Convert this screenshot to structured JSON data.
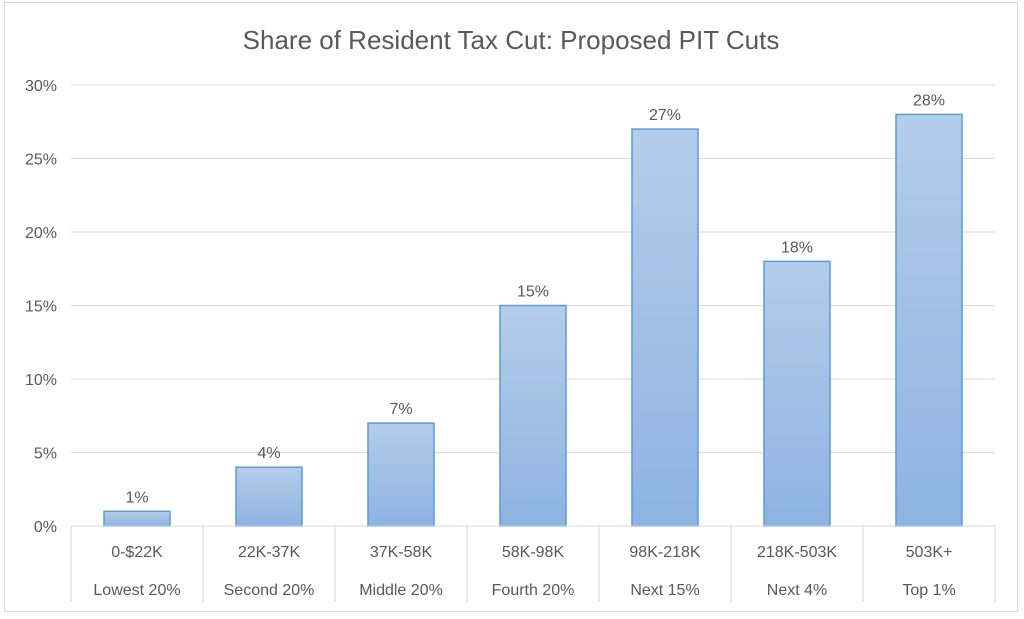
{
  "chart_data": {
    "type": "bar",
    "title": "Share of Resident Tax Cut: Proposed PIT Cuts",
    "xlabel": "",
    "ylabel": "",
    "categories": [
      "0-$22K",
      "22K-37K",
      "37K-58K",
      "58K-98K",
      "98K-218K",
      "218K-503K",
      "503K+"
    ],
    "groups": [
      "Lowest 20%",
      "Second 20%",
      "Middle 20%",
      "Fourth 20%",
      "Next 15%",
      "Next 4%",
      "Top 1%"
    ],
    "values": [
      1,
      4,
      7,
      15,
      27,
      18,
      28
    ],
    "data_labels": [
      "1%",
      "4%",
      "7%",
      "15%",
      "27%",
      "18%",
      "28%"
    ],
    "ylim": [
      0,
      30
    ],
    "yticks": [
      0,
      5,
      10,
      15,
      20,
      25,
      30
    ],
    "ytick_labels": [
      "0%",
      "5%",
      "10%",
      "15%",
      "20%",
      "25%",
      "30%"
    ],
    "grid": true,
    "legend": "none",
    "colors": {
      "bar_top": "#b4cde9",
      "bar_bottom": "#8eb3e2",
      "bar_border": "#5b9bd5",
      "grid": "#d9d9d9",
      "text": "#595959"
    }
  }
}
